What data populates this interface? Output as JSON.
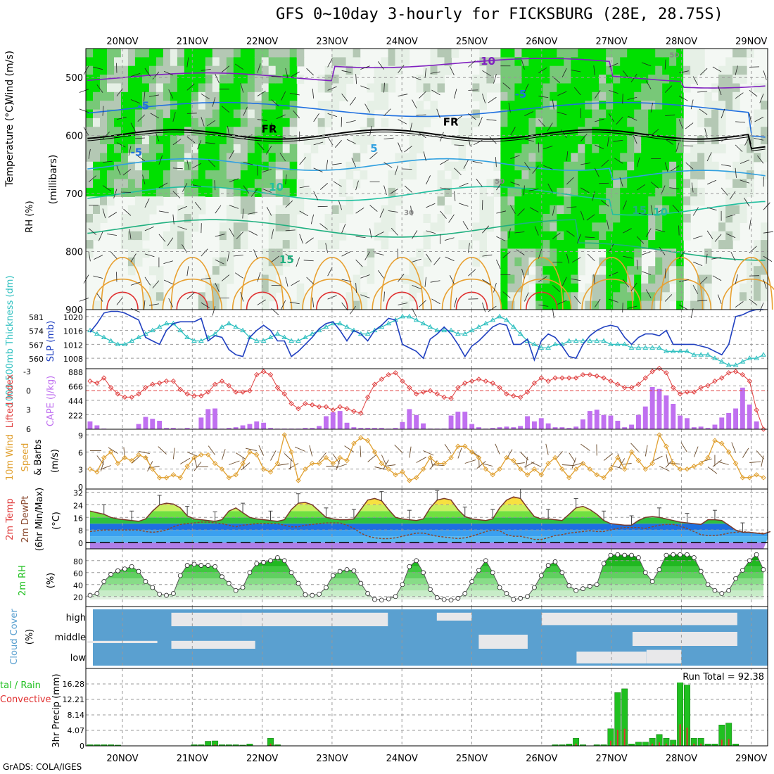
{
  "title": "GFS 0~10day 3-hourly for FICKSBURG (28E, 28.75S)",
  "credit": "GrADS: COLA/IGES",
  "dates": [
    "20NOV",
    "21NOV",
    "22NOV",
    "23NOV",
    "24NOV",
    "25NOV",
    "26NOV",
    "27NOV",
    "28NOV",
    "29NOV"
  ],
  "colors": {
    "rh_dark": "#00e000",
    "rh_mid": "#78c878",
    "rh_gray": "#b4c8b4",
    "rh_light": "#e6f0e6",
    "temp_warm": "#e8a030",
    "temp_hot": "#e03030",
    "temp_cool": "#20c0a0",
    "temp_cold": "#2070e0",
    "temp_freeze": "#000000",
    "temp_minus10": "#8020c0",
    "slp": "#2040c0",
    "thickness": "#30c0c0",
    "lifted_index": "#e04040",
    "cape": "#c070f0",
    "wind10m": "#e0a030",
    "cloud": "#5aa0d0",
    "precip_total": "#20c020",
    "precip_conv": "#e03030"
  },
  "chart_data": [
    {
      "type": "heatmap",
      "panel": "upper-air",
      "ylabel_parts": [
        "RH (%)",
        "Temperature (°C)",
        "Wind (m/s)"
      ],
      "yaxis_label": "(millibars)",
      "yticks": [
        500,
        600,
        700,
        800,
        900
      ],
      "ylim": [
        450,
        900
      ],
      "contour_labels": [
        {
          "text": "-10",
          "day": 5.2,
          "p": 478
        },
        {
          "text": "-5",
          "day": 5.7,
          "p": 535
        },
        {
          "text": "-5",
          "day": 0.3,
          "p": 555
        },
        {
          "text": "FR",
          "day": 2.1,
          "p": 595
        },
        {
          "text": "FR",
          "day": 4.7,
          "p": 583
        },
        {
          "text": "-5",
          "day": 0.2,
          "p": 635
        },
        {
          "text": "5",
          "day": 3.6,
          "p": 628
        },
        {
          "text": "10",
          "day": 2.2,
          "p": 695
        },
        {
          "text": "15",
          "day": 7.4,
          "p": 735
        },
        {
          "text": "10",
          "day": 7.7,
          "p": 738
        },
        {
          "text": "15",
          "day": 2.35,
          "p": 820
        },
        {
          "text": "50",
          "day": 5.4,
          "p": 683
        },
        {
          "text": "50",
          "day": 7.9,
          "p": 465
        },
        {
          "text": "30",
          "day": 4.1,
          "p": 737
        }
      ]
    },
    {
      "type": "line",
      "panel": "slp-thickness",
      "ylabel_left": "1000-500mb Thickness (dm)",
      "ylabel_right": "SLP (mb)",
      "yticks_left": [
        "581",
        "574",
        "567",
        "560"
      ],
      "yticks_right": [
        "1020",
        "1016",
        "1012",
        "1008"
      ],
      "ylim_slp": [
        1005,
        1022
      ],
      "series": [
        {
          "name": "SLP (mb)",
          "values": [
            1015.5,
            1018,
            1021,
            1021.5,
            1021.5,
            1021,
            1020,
            1019,
            1014,
            1013,
            1012,
            1016,
            1018,
            1018.5,
            1018.5,
            1018.5,
            1019.5,
            1013,
            1014.5,
            1014,
            1010.5,
            1009,
            1008.5,
            1014,
            1016,
            1017.5,
            1016,
            1013,
            1013,
            1008.5,
            1010,
            1012,
            1014,
            1016.5,
            1018,
            1018.5,
            1016,
            1013,
            1016,
            1015,
            1013,
            1016,
            1017.5,
            1019.5,
            1019,
            1012,
            1011,
            1010,
            1008,
            1013.5,
            1015,
            1017,
            1015,
            1012,
            1008.5,
            1011.5,
            1013,
            1015,
            1017,
            1018,
            1017.5,
            1012,
            1012,
            1013.5,
            1007.5,
            1013,
            1015,
            1014,
            1011.5,
            1008.5,
            1008,
            1012,
            1014.5,
            1016,
            1017,
            1017.5,
            1017,
            1014,
            1012,
            1014,
            1015,
            1015,
            1014.5,
            1016,
            1012,
            1012,
            1012,
            1012,
            1011.5,
            1011,
            1010,
            1009,
            1012,
            1020,
            1020.5,
            1021.5,
            1022,
            1022
          ]
        },
        {
          "name": "1000-500mb Thickness (dm)",
          "values": [
            1016,
            1015,
            1014,
            1013,
            1012,
            1012,
            1013,
            1014,
            1015,
            1016,
            1017,
            1018,
            1018,
            1016,
            1014,
            1013,
            1013,
            1014,
            1015,
            1017,
            1018,
            1017,
            1016,
            1014,
            1013,
            1013,
            1014,
            1015,
            1014,
            1013,
            1013,
            1014,
            1015,
            1016,
            1017,
            1018,
            1018,
            1017,
            1016,
            1015,
            1015,
            1016,
            1017,
            1018,
            1019,
            1020,
            1020,
            1019,
            1018,
            1017,
            1016,
            1016,
            1016,
            1015,
            1015,
            1016,
            1017,
            1018,
            1019,
            1020,
            1019,
            1017,
            1015,
            1013,
            1012,
            1011,
            1011,
            1012,
            1012,
            1013,
            1013,
            1013,
            1013,
            1013,
            1013,
            1012,
            1012,
            1012,
            1011,
            1011,
            1011,
            1011,
            1011,
            1010,
            1010,
            1010,
            1010,
            1009,
            1009,
            1009,
            1008,
            1007,
            1006,
            1006,
            1007,
            1008,
            1008,
            1009
          ]
        }
      ]
    },
    {
      "type": "bar",
      "panel": "lifted-cape",
      "ylabel_left": "Lifted Index",
      "ylabel_right": "CAPE (J/kg)",
      "yticks_left": [
        "-3",
        "0",
        "3",
        "6"
      ],
      "yticks_right": [
        "888",
        "666",
        "444",
        "222"
      ],
      "ylim_cape": [
        0,
        888
      ],
      "cape_values": [
        120,
        60,
        10,
        0,
        0,
        0,
        0,
        80,
        190,
        160,
        130,
        20,
        20,
        10,
        20,
        10,
        180,
        310,
        320,
        10,
        20,
        30,
        60,
        80,
        120,
        100,
        20,
        10,
        10,
        10,
        10,
        20,
        20,
        50,
        200,
        260,
        280,
        100,
        30,
        20,
        20,
        20,
        20,
        10,
        20,
        110,
        310,
        220,
        90,
        10,
        10,
        10,
        210,
        270,
        270,
        80,
        30,
        10,
        20,
        30,
        40,
        30,
        50,
        200,
        120,
        170,
        90,
        30,
        30,
        20,
        40,
        150,
        280,
        300,
        220,
        210,
        130,
        30,
        70,
        220,
        350,
        650,
        620,
        520,
        390,
        210,
        170,
        30,
        40,
        20,
        70,
        180,
        250,
        320,
        640,
        380,
        120,
        0
      ],
      "lifted_values": [
        -1.5,
        -1.2,
        -2,
        -0.5,
        0.5,
        1,
        1,
        0.5,
        -0.5,
        -1,
        -1.2,
        -1.5,
        -1.5,
        -0.2,
        0.5,
        0.8,
        0.8,
        0.2,
        -1,
        -1.5,
        -0.8,
        0.2,
        0.2,
        0,
        -2.5,
        -3,
        -2.5,
        -0.5,
        0.5,
        2,
        2.8,
        2,
        2.2,
        2.5,
        2.5,
        3,
        2.5,
        2.8,
        3.2,
        3.5,
        1,
        -1,
        -1.8,
        -2.5,
        -2.8,
        -1.5,
        -0.5,
        0.5,
        0.2,
        0,
        0.5,
        1,
        1.2,
        -0.5,
        -1.2,
        -1.5,
        -1.8,
        -1.5,
        -1.2,
        -0.5,
        0.5,
        0.8,
        1,
        0.2,
        -1.2,
        -2,
        -1.5,
        -2,
        -2,
        -2,
        -2,
        -2.5,
        -2.5,
        -2.3,
        -2,
        -1.5,
        -1,
        -0.5,
        -0.5,
        -1,
        -2,
        -3,
        -3.5,
        -2.8,
        -0.5,
        0.5,
        0.2,
        0.2,
        -0.5,
        -0.8,
        -1.5,
        -2,
        -2.8,
        -3,
        -2.5,
        -1.5,
        3,
        6
      ]
    },
    {
      "type": "line",
      "panel": "wind10m",
      "ylabel": "10m Wind Speed & Barbs (m/s)",
      "yticks": [
        "9",
        "6",
        "3",
        "0"
      ],
      "ylim": [
        0,
        9.5
      ],
      "values": [
        3,
        2.5,
        5,
        6,
        4,
        5,
        4.5,
        5.5,
        5,
        3,
        1.5,
        1.5,
        2,
        1.5,
        3.5,
        5,
        5.5,
        5.5,
        4,
        3,
        1.5,
        2,
        4,
        6,
        5.5,
        3,
        2.5,
        4,
        9,
        6,
        1,
        3,
        4,
        4,
        5,
        4,
        5,
        4.5,
        7.5,
        8.5,
        8,
        6,
        4,
        3,
        2,
        2.5,
        1,
        1.5,
        3,
        5,
        4,
        4,
        5,
        7,
        7,
        6,
        5,
        3,
        2,
        3,
        5,
        4.5,
        3,
        2,
        3,
        2,
        4,
        5,
        3,
        1.5,
        3,
        4,
        3,
        2,
        1.5,
        3,
        5,
        3,
        6,
        4.5,
        3,
        4,
        9,
        7,
        4,
        3,
        3,
        3.5,
        4,
        5,
        8,
        7.5,
        6,
        4,
        1.5,
        1.5,
        2,
        1.5
      ]
    },
    {
      "type": "area",
      "panel": "temp-dewpt",
      "ylabel": "2m Temp 2m DewPt (6hr Min/Max) (°C)",
      "yticks": [
        "32",
        "24",
        "16",
        "8",
        "0"
      ],
      "ylim": [
        -4,
        34
      ],
      "temp_values": [
        20,
        19,
        18,
        16,
        15,
        14.5,
        14,
        13.5,
        15,
        20,
        24,
        25,
        24.5,
        22,
        17,
        15,
        14.5,
        14,
        13.5,
        14.5,
        20,
        22,
        19,
        16,
        15,
        14.5,
        14,
        13.5,
        14.5,
        21,
        25,
        25.5,
        24,
        20,
        16,
        15,
        14.5,
        14.5,
        15,
        21,
        27,
        28,
        26.5,
        21,
        16,
        15,
        14.5,
        14,
        15,
        22,
        27,
        28,
        27,
        21,
        16.5,
        15,
        14.5,
        14,
        15,
        22,
        27,
        29,
        28,
        22,
        16.5,
        15,
        15,
        14.5,
        14,
        18,
        22,
        23,
        21,
        18,
        14,
        12,
        11.5,
        11,
        11,
        14,
        16,
        16.5,
        16,
        15,
        14,
        13,
        12.5,
        12,
        11.5,
        14.5,
        14.5,
        14,
        11,
        8,
        6.5,
        6.5,
        6,
        5.5,
        7
      ],
      "dew_values": [
        7,
        7.5,
        8,
        8,
        8,
        8,
        8,
        8,
        7,
        6.5,
        7,
        8,
        10,
        11.5,
        12,
        12.5,
        13,
        13,
        12.5,
        12,
        11,
        10,
        11,
        11.5,
        12,
        12,
        12,
        12,
        11,
        10,
        10,
        11,
        11.5,
        12,
        12.5,
        12.5,
        12.5,
        11,
        9,
        6,
        4,
        3,
        2.5,
        2.5,
        3,
        4,
        5,
        6,
        6,
        5,
        4,
        3.5,
        3,
        2.5,
        3,
        4,
        5.5,
        7,
        8,
        7.5,
        5,
        4,
        4,
        3,
        2,
        2,
        3,
        4.5,
        5,
        6,
        6.5,
        7,
        7.5,
        7,
        7,
        8,
        9,
        9.5,
        9.5,
        9.5,
        9,
        10,
        11,
        11.5,
        11.5,
        10.5,
        9,
        7,
        5,
        4.5,
        4.5,
        5,
        6,
        6.5,
        7,
        6.5,
        6,
        6
      ]
    },
    {
      "type": "area",
      "panel": "rh2m",
      "ylabel": "2m RH (%)",
      "yticks": [
        "80",
        "60",
        "40",
        "20"
      ],
      "ylim": [
        0,
        100
      ],
      "values": [
        22,
        25,
        45,
        57,
        63,
        66,
        70,
        62,
        45,
        35,
        24,
        22,
        25,
        55,
        72,
        74,
        72,
        72,
        70,
        53,
        42,
        30,
        35,
        60,
        75,
        77,
        80,
        85,
        80,
        60,
        42,
        23,
        22,
        24,
        35,
        55,
        62,
        65,
        63,
        42,
        25,
        15,
        14,
        16,
        20,
        40,
        70,
        80,
        60,
        32,
        18,
        15,
        14,
        17,
        25,
        45,
        64,
        80,
        60,
        35,
        25,
        15,
        17,
        20,
        35,
        55,
        72,
        78,
        60,
        38,
        30,
        33,
        37,
        40,
        75,
        89,
        90,
        89,
        89,
        85,
        60,
        45,
        65,
        89,
        90,
        90,
        90,
        85,
        62,
        40,
        30,
        25,
        30,
        50,
        64,
        80,
        90,
        65
      ]
    },
    {
      "type": "heatmap",
      "panel": "cloud-cover",
      "ylabel": "Cloud Cover (%)",
      "yticks": [
        "high",
        "middle",
        "low"
      ]
    },
    {
      "type": "bar",
      "panel": "precip",
      "ylabel_left": "Total / Rain Convective",
      "ylabel": "3hr Precip (mm)",
      "yticks": [
        "16.28",
        "12.21",
        "8.14",
        "4.07",
        "0"
      ],
      "ylim": [
        0,
        20.35
      ],
      "run_total_label": "Run Total = 92.38",
      "total_values": [
        0.3,
        0.3,
        0.3,
        0.3,
        0.2,
        0,
        0,
        0,
        0,
        0,
        0,
        0,
        0,
        0,
        0,
        0.3,
        0.3,
        1.2,
        1.3,
        0.3,
        0.3,
        0.3,
        0.2,
        0.5,
        0,
        0,
        2.0,
        0.3,
        0,
        0,
        0,
        0,
        0,
        0,
        0,
        0,
        0,
        0,
        0,
        0,
        0,
        0,
        0,
        0,
        0,
        0,
        0,
        0,
        0,
        0,
        0,
        0,
        0,
        0,
        0,
        0,
        0,
        0,
        0,
        0,
        0,
        0,
        0,
        0,
        0,
        0,
        0,
        0.3,
        0.3,
        0.5,
        2.0,
        0.3,
        0,
        0.3,
        0.3,
        4.5,
        14.0,
        15.0,
        0.5,
        1.0,
        1.0,
        2.0,
        3.0,
        2.0,
        1.5,
        19.0,
        16.0,
        2.0,
        2.0,
        0.5,
        0.5,
        5.5,
        6.0,
        0.5,
        0,
        0,
        0,
        0
      ]
    }
  ]
}
